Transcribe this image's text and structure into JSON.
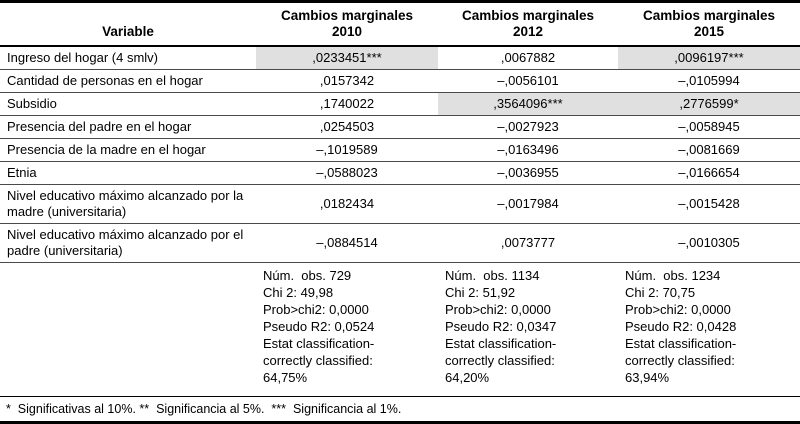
{
  "table": {
    "shade_color": "#e0e0e0",
    "header": {
      "variable_label": "Variable",
      "columns": [
        {
          "line1": "Cambios marginales",
          "line2": "2010"
        },
        {
          "line1": "Cambios marginales",
          "line2": "2012"
        },
        {
          "line1": "Cambios marginales",
          "line2": "2015"
        }
      ]
    },
    "rows": [
      {
        "variable": "Ingreso del hogar (4 smlv)",
        "values": [
          ",0233451***",
          ",0067882",
          ",0096197***"
        ],
        "shaded": [
          true,
          false,
          true
        ]
      },
      {
        "variable": "Cantidad de personas en el hogar",
        "values": [
          ",0157342",
          "–,0056101",
          "–,0105994"
        ],
        "shaded": [
          false,
          false,
          false
        ]
      },
      {
        "variable": "Subsidio",
        "values": [
          ",1740022",
          ",3564096***",
          ",2776599*"
        ],
        "shaded": [
          false,
          true,
          true
        ]
      },
      {
        "variable": "Presencia del padre en el hogar",
        "values": [
          ",0254503",
          "–,0027923",
          "–,0058945"
        ],
        "shaded": [
          false,
          false,
          false
        ]
      },
      {
        "variable": "Presencia de la madre en el hogar",
        "values": [
          "–,1019589",
          "–,0163496",
          "–,0081669"
        ],
        "shaded": [
          false,
          false,
          false
        ]
      },
      {
        "variable": "Etnia",
        "values": [
          "–,0588023",
          "–,0036955",
          "–,0166654"
        ],
        "shaded": [
          false,
          false,
          false
        ]
      },
      {
        "variable": "Nivel educativo máximo alcanzado por la madre (universitaria)",
        "values": [
          ",0182434",
          "–,0017984",
          "–,0015428"
        ],
        "shaded": [
          false,
          false,
          false
        ]
      },
      {
        "variable": "Nivel educativo máximo alcanzado por el padre (universitaria)",
        "values": [
          "–,0884514",
          ",0073777",
          "–,0010305"
        ],
        "shaded": [
          false,
          false,
          false
        ]
      }
    ],
    "stats": [
      {
        "lines": [
          "Núm.  obs. 729",
          "Chi 2: 49,98",
          "Prob>chi2: 0,0000",
          "Pseudo R2: 0,0524",
          "Estat classification-",
          "correctly classified:",
          "64,75%"
        ]
      },
      {
        "lines": [
          "Núm.  obs. 1134",
          "Chi 2: 51,92",
          "Prob>chi2: 0,0000",
          "Pseudo R2: 0,0347",
          "Estat classification-",
          "correctly classified:",
          "64,20%"
        ]
      },
      {
        "lines": [
          "Núm.  obs. 1234",
          "Chi 2: 70,75",
          "Prob>chi2: 0,0000",
          "Pseudo R2: 0,0428",
          "Estat classification-",
          "correctly classified:",
          "63,94%"
        ]
      }
    ],
    "footnote": "*  Significativas al 10%. **  Significancia al 5%.  ***  Significancia al 1%."
  }
}
